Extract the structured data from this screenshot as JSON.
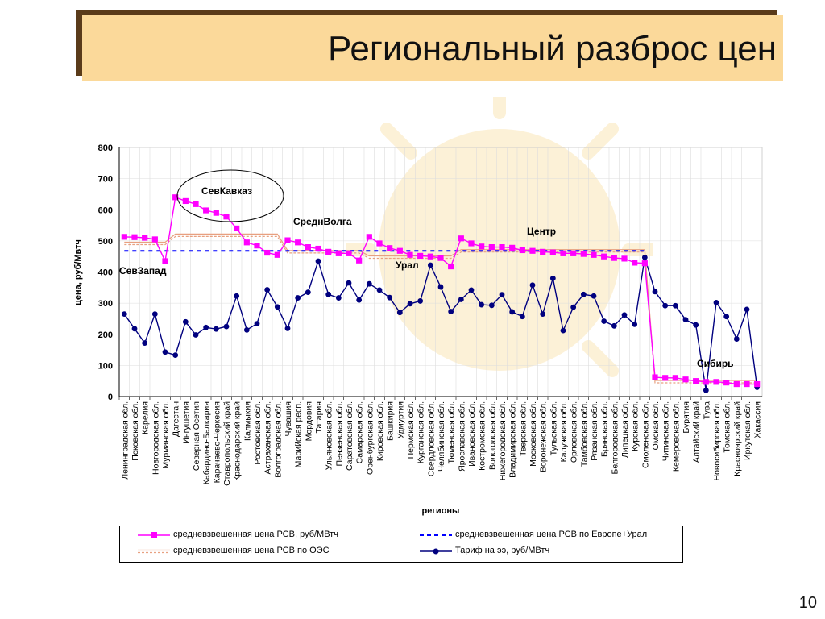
{
  "slide": {
    "title": "Региональный разброс цен",
    "page_number": "10"
  },
  "colors": {
    "magenta": "#ff00ff",
    "navy": "#00007f",
    "blue_dash": "#0000ff",
    "salmon": "#e8a080",
    "title_bg": "#fbd99a"
  },
  "chart_data": {
    "type": "line",
    "ylabel": "цена, руб/Мвтч",
    "xlabel": "регионы",
    "ylim": [
      0,
      800
    ],
    "yticks": [
      0,
      100,
      200,
      300,
      400,
      500,
      600,
      700,
      800
    ],
    "grid": true,
    "categories": [
      "Ленинградская обл.",
      "Псковская обл.",
      "Карелия",
      "Новгородская обл.",
      "Мурманская обл.",
      "Дагестан",
      "Ингушетия",
      "Северная Осетия",
      "Кабардино-Балкария",
      "Карачаево-Черкесия",
      "Ставропольский край",
      "Краснодарский край",
      "Калмыкия",
      "Ростовская обл.",
      "Астраханская обл.",
      "Волгоградская обл.",
      "Чувашия",
      "Марийская респ.",
      "Мордовия",
      "Татария",
      "Ульяновская обл.",
      "Пензенская обл.",
      "Саратовская обл.",
      "Самарская обл.",
      "Оренбургская обл.",
      "Кировская обл.",
      "Башкирия",
      "Удмуртия",
      "Пермская обл.",
      "Курганская обл.",
      "Свердловская обл.",
      "Челябинская обл.",
      "Тюменская обл.",
      "Ярославская обл.",
      "Ивановская обл.",
      "Костромская обл.",
      "Вологодская обл.",
      "Нижегородская обл.",
      "Владимирская обл.",
      "Тверская обл.",
      "Московская обл.",
      "Воронежская обл.",
      "Тульская обл.",
      "Калужская обл.",
      "Орловская обл.",
      "Тамбовская обл.",
      "Рязанская обл.",
      "Брянская обл.",
      "Белгородская обл.",
      "Липецкая обл.",
      "Курская обл.",
      "Смоленская обл.",
      "Омская обл.",
      "Читинская обл.",
      "Кемеровская обл.",
      "Бурятия",
      "Алтайский край",
      "Тува",
      "Новосибирская обл.",
      "Томская обл.",
      "Красноярский край",
      "Иркутская обл.",
      "Хакассия"
    ],
    "series": [
      {
        "name": "средневзвешенная цена РСВ, руб/МВтч",
        "style": "magenta-square",
        "values": [
          513,
          512,
          510,
          505,
          435,
          640,
          628,
          618,
          598,
          590,
          578,
          540,
          495,
          485,
          462,
          455,
          502,
          495,
          480,
          475,
          465,
          460,
          460,
          437,
          513,
          492,
          477,
          468,
          455,
          452,
          450,
          445,
          418,
          508,
          492,
          482,
          480,
          480,
          478,
          470,
          468,
          465,
          463,
          460,
          460,
          458,
          455,
          450,
          445,
          443,
          430,
          428,
          62,
          60,
          60,
          55,
          50,
          47,
          47,
          45,
          40,
          40,
          40
        ]
      },
      {
        "name": "средневзвешенная цена РСВ по Европе+Урал",
        "style": "blue-dash",
        "values": [
          468,
          468,
          468,
          468,
          468,
          468,
          468,
          468,
          468,
          468,
          468,
          468,
          468,
          468,
          468,
          468,
          468,
          468,
          468,
          468,
          468,
          468,
          468,
          468,
          468,
          468,
          468,
          468,
          468,
          468,
          468,
          468,
          468,
          468,
          468,
          468,
          468,
          468,
          468,
          468,
          468,
          468,
          468,
          468,
          468,
          468,
          468,
          468,
          468,
          468,
          468,
          468,
          null,
          null,
          null,
          null,
          null,
          null,
          null,
          null,
          null,
          null,
          null
        ]
      },
      {
        "name": "средневзвешенная цена РСВ по ОЭС",
        "style": "salmon-double",
        "values": [
          492,
          492,
          492,
          492,
          492,
          518,
          518,
          518,
          518,
          518,
          518,
          518,
          518,
          518,
          518,
          518,
          465,
          465,
          465,
          465,
          465,
          465,
          465,
          465,
          448,
          448,
          448,
          448,
          448,
          448,
          448,
          448,
          448,
          468,
          468,
          468,
          468,
          468,
          468,
          468,
          468,
          468,
          468,
          468,
          468,
          468,
          468,
          468,
          468,
          468,
          468,
          468,
          48,
          48,
          48,
          48,
          48,
          48,
          48,
          48,
          48,
          48,
          48
        ]
      },
      {
        "name": "Тариф на ээ, руб/МВтч",
        "style": "navy-dot",
        "values": [
          265,
          218,
          172,
          265,
          143,
          133,
          240,
          198,
          222,
          217,
          225,
          323,
          214,
          234,
          343,
          288,
          219,
          317,
          335,
          435,
          328,
          317,
          365,
          310,
          362,
          342,
          318,
          270,
          298,
          307,
          422,
          352,
          273,
          312,
          342,
          295,
          293,
          327,
          272,
          257,
          358,
          265,
          380,
          212,
          287,
          328,
          323,
          242,
          227,
          262,
          232,
          447,
          337,
          292,
          292,
          247,
          230,
          20,
          302,
          257,
          185,
          280,
          30
        ]
      }
    ],
    "annotations": [
      "СевКавказ",
      "СреднВолга",
      "Центр",
      "СевЗапад",
      "Урал",
      "Сибирь"
    ]
  }
}
